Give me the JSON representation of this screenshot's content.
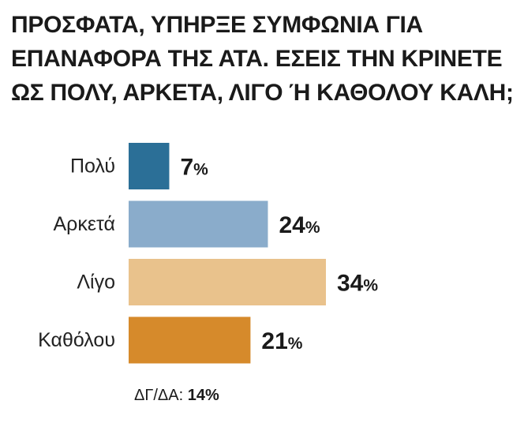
{
  "title_lines": [
    "ΠΡΟΣΦΑΤΑ, ΥΠΗΡΞΕ ΣΥΜΦΩΝΙΑ ΓΙΑ",
    "ΕΠΑΝΑΦΟΡΑ ΤΗΣ ΑΤΑ. ΕΣΕΙΣ ΤΗΝ ΚΡΙΝΕΤΕ",
    "ΩΣ ΠΟΛΥ, ΑΡΚΕΤΑ, ΛΙΓΟ Ή ΚΑΘΟΛΟΥ ΚΑΛΗ;"
  ],
  "footnote": {
    "label": "ΔΓ/ΔΑ:",
    "value": "14",
    "unit": "%"
  },
  "chart_data": {
    "type": "bar",
    "orientation": "horizontal",
    "title": "ΠΡΟΣΦΑΤΑ, ΥΠΗΡΞΕ ΣΥΜΦΩΝΙΑ ΓΙΑ ΕΠΑΝΑΦΟΡΑ ΤΗΣ ΑΤΑ. ΕΣΕΙΣ ΤΗΝ ΚΡΙΝΕΤΕ ΩΣ ΠΟΛΥ, ΑΡΚΕΤΑ, ΛΙΓΟ Ή ΚΑΘΟΛΟΥ ΚΑΛΗ;",
    "categories": [
      "Πολύ",
      "Αρκετά",
      "Λίγο",
      "Καθόλου"
    ],
    "values": [
      7,
      24,
      34,
      21
    ],
    "unit": "%",
    "colors": [
      "#2b6f97",
      "#8aaccb",
      "#e9c28c",
      "#d68a2b"
    ],
    "xlim": [
      0,
      34
    ],
    "grid": false,
    "legend": "none"
  }
}
